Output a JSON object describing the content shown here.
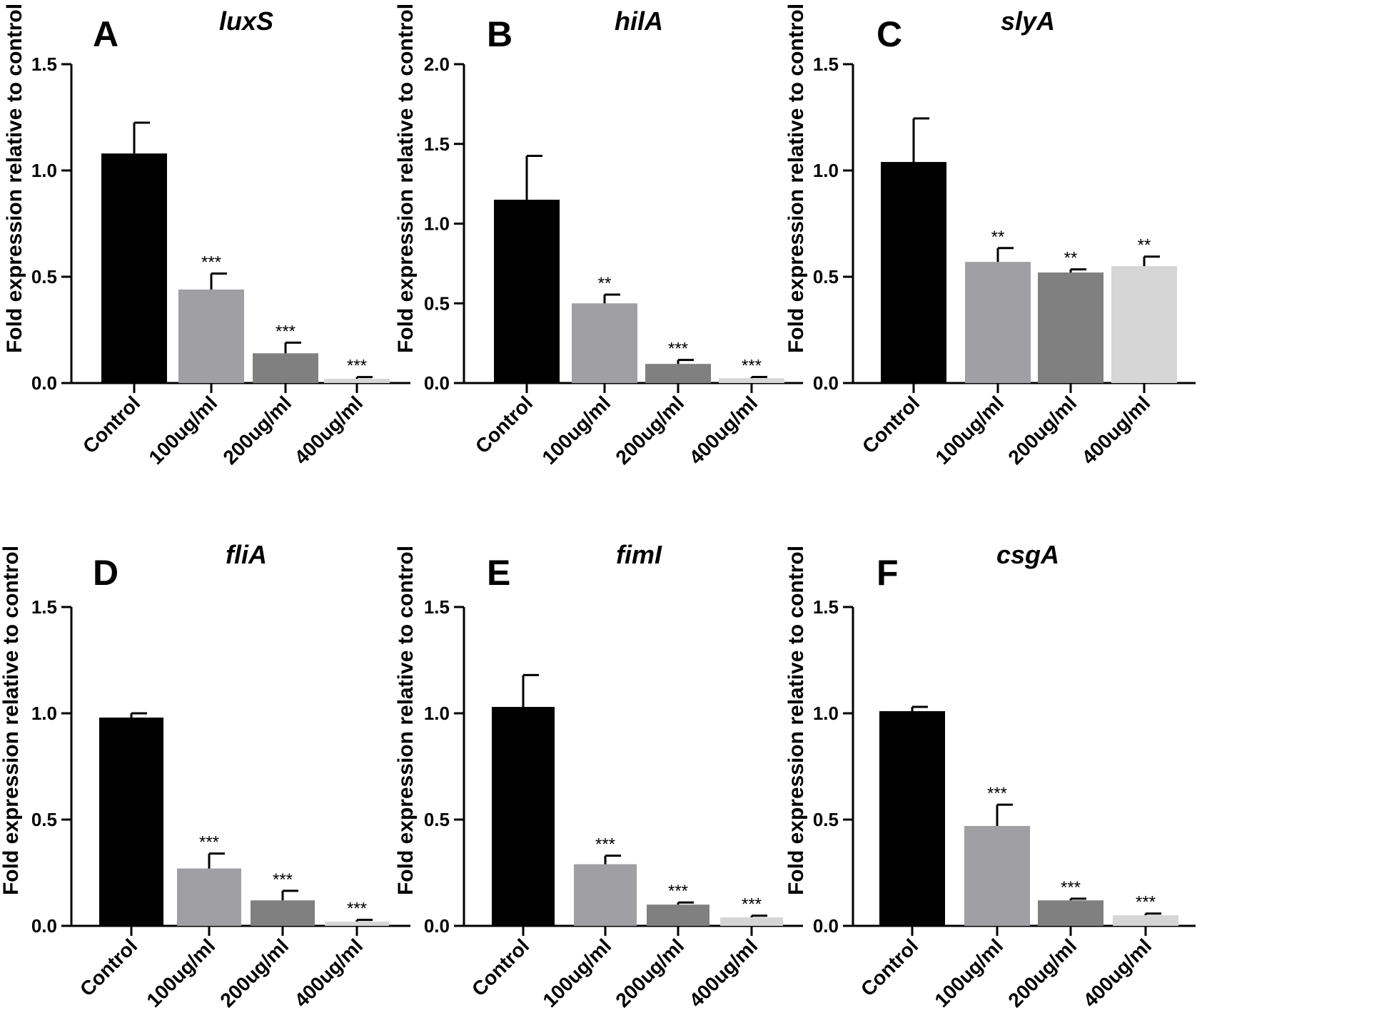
{
  "chart_data": [
    {
      "type": "bar",
      "panel": "A",
      "title": "luxS",
      "ylabel": "Fold expression relative to control",
      "ylim": [
        0,
        1.5
      ],
      "yticks": [
        "0.0",
        "0.5",
        "1.0",
        "1.5"
      ],
      "categories": [
        "Control",
        "100ug/ml",
        "200ug/ml",
        "400ug/ml"
      ],
      "values": [
        1.08,
        0.44,
        0.14,
        0.02
      ],
      "errors": [
        0.145,
        0.075,
        0.05,
        0.008
      ],
      "significance": [
        "",
        "***",
        "***",
        "***"
      ]
    },
    {
      "type": "bar",
      "panel": "B",
      "title": "hilA",
      "ylabel": "Fold expression relative to control",
      "ylim": [
        0,
        2.0
      ],
      "yticks": [
        "0.0",
        "0.5",
        "1.0",
        "1.5",
        "2.0"
      ],
      "categories": [
        "Control",
        "100ug/ml",
        "200ug/ml",
        "400ug/ml"
      ],
      "values": [
        1.15,
        0.5,
        0.12,
        0.03
      ],
      "errors": [
        0.275,
        0.055,
        0.025,
        0.008
      ],
      "significance": [
        "",
        "**",
        "***",
        "***"
      ]
    },
    {
      "type": "bar",
      "panel": "C",
      "title": "slyA",
      "ylabel": "Fold expression relative to control",
      "ylim": [
        0,
        1.5
      ],
      "yticks": [
        "0.0",
        "0.5",
        "1.0",
        "1.5"
      ],
      "categories": [
        "Control",
        "100ug/ml",
        "200ug/ml",
        "400ug/ml"
      ],
      "values": [
        1.04,
        0.57,
        0.52,
        0.55
      ],
      "errors": [
        0.205,
        0.065,
        0.015,
        0.045
      ],
      "significance": [
        "",
        "**",
        "**",
        "**"
      ]
    },
    {
      "type": "bar",
      "panel": "D",
      "title": "fliA",
      "ylabel": "Fold expression relative to control",
      "ylim": [
        0,
        1.5
      ],
      "yticks": [
        "0.0",
        "0.5",
        "1.0",
        "1.5"
      ],
      "categories": [
        "Control",
        "100ug/ml",
        "200ug/ml",
        "400ug/ml"
      ],
      "values": [
        0.98,
        0.27,
        0.12,
        0.02
      ],
      "errors": [
        0.02,
        0.07,
        0.045,
        0.008
      ],
      "significance": [
        "",
        "***",
        "***",
        "***"
      ]
    },
    {
      "type": "bar",
      "panel": "E",
      "title": "fimI",
      "ylabel": "Fold expression relative to control",
      "ylim": [
        0,
        1.5
      ],
      "yticks": [
        "0.0",
        "0.5",
        "1.0",
        "1.5"
      ],
      "categories": [
        "Control",
        "100ug/ml",
        "200ug/ml",
        "400ug/ml"
      ],
      "values": [
        1.03,
        0.29,
        0.1,
        0.04
      ],
      "errors": [
        0.15,
        0.04,
        0.01,
        0.008
      ],
      "significance": [
        "",
        "***",
        "***",
        "***"
      ]
    },
    {
      "type": "bar",
      "panel": "F",
      "title": "csgA",
      "ylabel": "Fold expression relative to control",
      "ylim": [
        0,
        1.5
      ],
      "yticks": [
        "0.0",
        "0.5",
        "1.0",
        "1.5"
      ],
      "categories": [
        "Control",
        "100ug/ml",
        "200ug/ml",
        "400ug/ml"
      ],
      "values": [
        1.01,
        0.47,
        0.12,
        0.05
      ],
      "errors": [
        0.02,
        0.1,
        0.008,
        0.008
      ],
      "significance": [
        "",
        "***",
        "***",
        "***"
      ]
    }
  ],
  "colors": {
    "bar_fills": [
      "#000000",
      "#a0a0a4",
      "#808080",
      "#d6d6d6"
    ],
    "axis": "#000000",
    "text": "#000000"
  }
}
